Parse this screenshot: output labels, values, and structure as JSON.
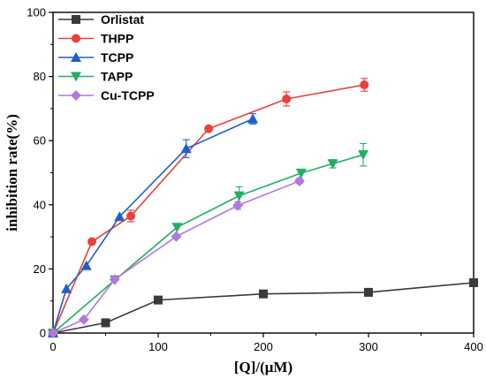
{
  "chart_data": {
    "type": "line",
    "xlabel": "[Q]/(μM)",
    "ylabel": "inhibition rate(%)",
    "xlim": [
      0,
      400
    ],
    "ylim": [
      0,
      100
    ],
    "xticks": [
      0,
      100,
      200,
      300,
      400
    ],
    "yticks": [
      0,
      20,
      40,
      60,
      80,
      100
    ],
    "grid": false,
    "legend_position": "top-left",
    "series": [
      {
        "name": "Orlistat",
        "color": "#3a3a3a",
        "marker": "square",
        "points": [
          {
            "x": 0,
            "y": 0
          },
          {
            "x": 50,
            "y": 3.2
          },
          {
            "x": 100,
            "y": 10.3
          },
          {
            "x": 200,
            "y": 12.2
          },
          {
            "x": 300,
            "y": 12.7
          },
          {
            "x": 400,
            "y": 15.7
          }
        ]
      },
      {
        "name": "THPP",
        "color": "#e8413b",
        "marker": "circle",
        "points": [
          {
            "x": 0,
            "y": 0
          },
          {
            "x": 37,
            "y": 28.5
          },
          {
            "x": 74,
            "y": 36.5,
            "err": 1.8
          },
          {
            "x": 148,
            "y": 63.7
          },
          {
            "x": 222,
            "y": 73.0,
            "err": 2.2
          },
          {
            "x": 296,
            "y": 77.4,
            "err": 2.0
          }
        ]
      },
      {
        "name": "TCPP",
        "color": "#1f5fc9",
        "marker": "triangle-up",
        "points": [
          {
            "x": 0,
            "y": 0
          },
          {
            "x": 12.7,
            "y": 13.8
          },
          {
            "x": 31.7,
            "y": 21.0
          },
          {
            "x": 63.3,
            "y": 36.3
          },
          {
            "x": 126.6,
            "y": 57.5,
            "err": 2.8
          },
          {
            "x": 190,
            "y": 66.8,
            "err": 1.6
          }
        ]
      },
      {
        "name": "TAPP",
        "color": "#23ad63",
        "marker": "triangle-down",
        "points": [
          {
            "x": 0,
            "y": 0
          },
          {
            "x": 59,
            "y": 16.6
          },
          {
            "x": 118,
            "y": 33.0
          },
          {
            "x": 177,
            "y": 42.8,
            "err": 2.8
          },
          {
            "x": 236,
            "y": 49.9
          },
          {
            "x": 266,
            "y": 52.8,
            "err": 1.3
          },
          {
            "x": 295,
            "y": 55.6,
            "err": 3.5
          }
        ]
      },
      {
        "name": "Cu-TCPP",
        "color": "#b079dd",
        "marker": "diamond",
        "points": [
          {
            "x": 0,
            "y": 0
          },
          {
            "x": 29.3,
            "y": 4.2
          },
          {
            "x": 58.6,
            "y": 16.7
          },
          {
            "x": 117.2,
            "y": 30.1
          },
          {
            "x": 175.8,
            "y": 39.8,
            "err": 1.2
          },
          {
            "x": 234.4,
            "y": 47.4,
            "err": 0.8
          }
        ]
      }
    ]
  }
}
